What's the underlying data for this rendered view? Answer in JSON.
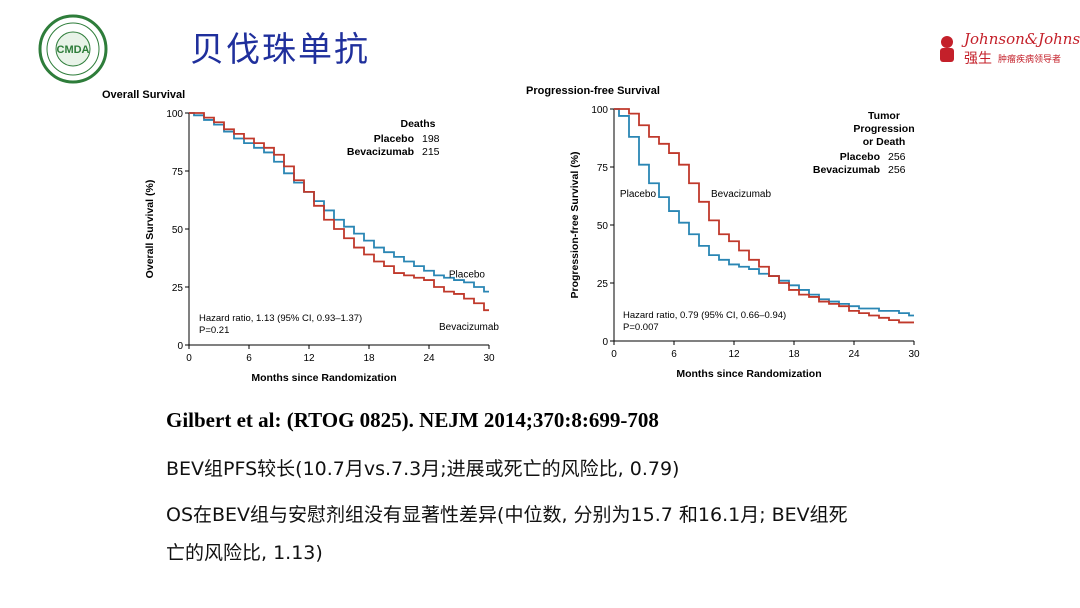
{
  "header": {
    "title": "贝伐珠单抗",
    "left_logo_text": "CMDA",
    "right_logo_brand": "Johnson&Johnson",
    "right_logo_cn": "强生",
    "right_logo_tagline": "肿瘤疾病领导者"
  },
  "colors": {
    "placebo": "#2a86b4",
    "bevacizumab": "#c0392b",
    "title": "#1f2f9c"
  },
  "chart_data": [
    {
      "type": "line",
      "title": "Overall Survival",
      "xlabel": "Months since Randomization",
      "ylabel": "Overall Survival (%)",
      "xlim": [
        0,
        30
      ],
      "ylim": [
        0,
        100
      ],
      "xticks": [
        0,
        6,
        12,
        18,
        24,
        30
      ],
      "yticks": [
        0,
        25,
        50,
        75,
        100
      ],
      "legend_title": [
        "Deaths"
      ],
      "legend_rows": [
        {
          "name": "Placebo",
          "value": "198"
        },
        {
          "name": "Bevacizumab",
          "value": "215"
        }
      ],
      "annotation_lines": [
        "Hazard ratio, 1.13 (95% CI, 0.93–1.37)",
        "P=0.21"
      ],
      "series": [
        {
          "name": "Placebo",
          "label": "Placebo",
          "x": [
            0,
            1,
            2,
            3,
            4,
            5,
            6,
            7,
            8,
            9,
            10,
            11,
            12,
            13,
            14,
            15,
            16,
            17,
            18,
            19,
            20,
            21,
            22,
            23,
            24,
            25,
            26,
            27,
            28,
            29,
            30
          ],
          "y": [
            100,
            99,
            97,
            95,
            92,
            89,
            87,
            85,
            83,
            79,
            74,
            70,
            66,
            62,
            58,
            54,
            51,
            48,
            45,
            42,
            40,
            38,
            36,
            34,
            32,
            30,
            29,
            28,
            27,
            25,
            23
          ]
        },
        {
          "name": "Bevacizumab",
          "label": "Bevacizumab",
          "x": [
            0,
            1,
            2,
            3,
            4,
            5,
            6,
            7,
            8,
            9,
            10,
            11,
            12,
            13,
            14,
            15,
            16,
            17,
            18,
            19,
            20,
            21,
            22,
            23,
            24,
            25,
            26,
            27,
            28,
            29,
            30
          ],
          "y": [
            100,
            100,
            98,
            96,
            93,
            91,
            89,
            87,
            85,
            82,
            77,
            71,
            66,
            60,
            54,
            50,
            46,
            42,
            39,
            36,
            34,
            31,
            30,
            29,
            28,
            25,
            23,
            22,
            20,
            18,
            15
          ]
        }
      ]
    },
    {
      "type": "line",
      "title": "Progression-free Survival",
      "xlabel": "Months since Randomization",
      "ylabel": "Progression-free Survival (%)",
      "xlim": [
        0,
        30
      ],
      "ylim": [
        0,
        100
      ],
      "xticks": [
        0,
        6,
        12,
        18,
        24,
        30
      ],
      "yticks": [
        0,
        25,
        50,
        75,
        100
      ],
      "legend_title": [
        "Tumor",
        "Progression",
        "or Death"
      ],
      "legend_rows": [
        {
          "name": "Placebo",
          "value": "256"
        },
        {
          "name": "Bevacizumab",
          "value": "256"
        }
      ],
      "annotation_lines": [
        "Hazard ratio, 0.79 (95% CI, 0.66–0.94)",
        "P=0.007"
      ],
      "series": [
        {
          "name": "Placebo",
          "label": "Placebo",
          "x": [
            0,
            1,
            2,
            3,
            4,
            5,
            6,
            7,
            8,
            9,
            10,
            11,
            12,
            13,
            14,
            15,
            16,
            17,
            18,
            19,
            20,
            21,
            22,
            23,
            24,
            25,
            26,
            27,
            28,
            29,
            30
          ],
          "y": [
            100,
            97,
            88,
            76,
            68,
            62,
            56,
            51,
            46,
            41,
            37,
            35,
            33,
            32,
            31,
            29,
            28,
            26,
            24,
            22,
            20,
            18,
            17,
            16,
            15,
            14,
            14,
            13,
            13,
            12,
            11
          ]
        },
        {
          "name": "Bevacizumab",
          "label": "Bevacizumab",
          "x": [
            0,
            1,
            2,
            3,
            4,
            5,
            6,
            7,
            8,
            9,
            10,
            11,
            12,
            13,
            14,
            15,
            16,
            17,
            18,
            19,
            20,
            21,
            22,
            23,
            24,
            25,
            26,
            27,
            28,
            29,
            30
          ],
          "y": [
            100,
            100,
            98,
            93,
            88,
            85,
            81,
            76,
            68,
            60,
            52,
            46,
            43,
            39,
            35,
            32,
            28,
            25,
            22,
            20,
            19,
            17,
            16,
            15,
            13,
            12,
            11,
            10,
            9,
            8,
            8
          ]
        }
      ]
    }
  ],
  "citation": "Gilbert et al: (RTOG 0825). NEJM 2014;370:8:699-708",
  "bullets": [
    "BEV组PFS较长(10.7月vs.7.3月;进展或死亡的风险比, 0.79)",
    "OS在BEV组与安慰剂组没有显著性差异(中位数, 分别为15.7 和16.1月; BEV组死亡的风险比, 1.13)"
  ]
}
